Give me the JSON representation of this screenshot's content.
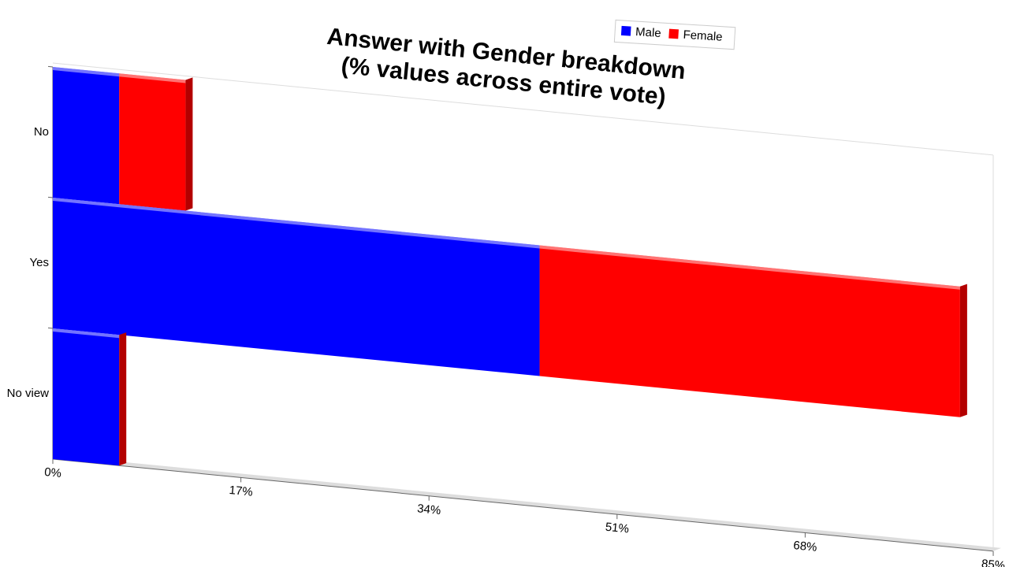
{
  "chart_data": {
    "type": "bar",
    "orientation": "horizontal",
    "stacked": true,
    "title": "Answer with Gender breakdown",
    "subtitle": "(% values across entire vote)",
    "categories": [
      "No",
      "Yes",
      "No view"
    ],
    "series": [
      {
        "name": "Male",
        "color": "#0000ff",
        "values": [
          6,
          44,
          6
        ]
      },
      {
        "name": "Female",
        "color": "#ff0000",
        "values": [
          6,
          38,
          0
        ]
      }
    ],
    "xlim": [
      0,
      85
    ],
    "xticks": [
      {
        "value": 0,
        "label": "0%"
      },
      {
        "value": 17,
        "label": "17%"
      },
      {
        "value": 34,
        "label": "34%"
      },
      {
        "value": 51,
        "label": "51%"
      },
      {
        "value": 68,
        "label": "68%"
      },
      {
        "value": 85,
        "label": "85%"
      }
    ],
    "legend": "top"
  }
}
